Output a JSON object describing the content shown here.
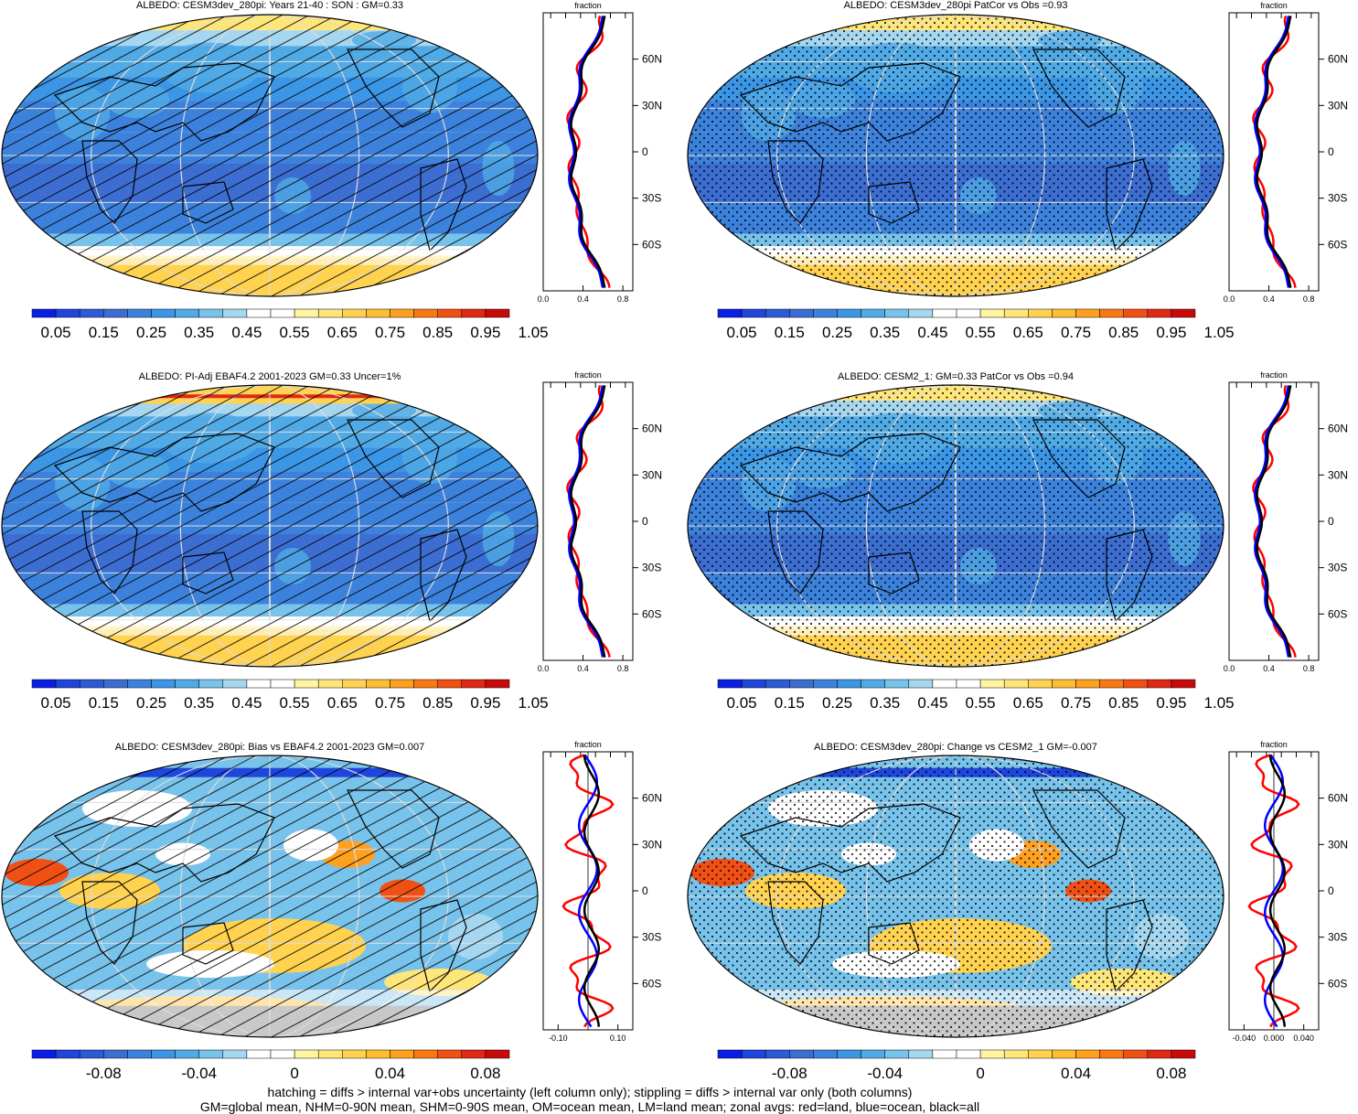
{
  "panels": [
    {
      "title": "ALBEDO: CESM3dev_280pi: Years 21-40 : SON : GM=0.33",
      "overlay": "hatch",
      "field": "abs",
      "zonal_xticks": [
        "0.0",
        "0.4",
        "0.8"
      ],
      "zonal_xlabel": "fraction",
      "zonal_xrange": [
        0,
        0.9
      ],
      "cbar_labels": [
        "0.05",
        "0.15",
        "0.25",
        "0.35",
        "0.45",
        "0.55",
        "0.65",
        "0.75",
        "0.85",
        "0.95",
        "1.05"
      ]
    },
    {
      "title": "ALBEDO: CESM3dev_280pi PatCor vs Obs =0.93",
      "overlay": "stipple",
      "field": "abs",
      "zonal_xticks": [
        "0.0",
        "0.4",
        "0.8"
      ],
      "zonal_xlabel": "fraction",
      "zonal_xrange": [
        0,
        0.9
      ],
      "cbar_labels": [
        "0.05",
        "0.15",
        "0.25",
        "0.35",
        "0.45",
        "0.55",
        "0.65",
        "0.75",
        "0.85",
        "0.95",
        "1.05"
      ]
    },
    {
      "title": "ALBEDO: PI-Adj EBAF4.2 2001-2023 GM=0.33 Uncer=1%",
      "overlay": "hatch",
      "field": "obs",
      "zonal_xticks": [
        "0.0",
        "0.4",
        "0.8"
      ],
      "zonal_xlabel": "fraction",
      "zonal_xrange": [
        0,
        0.9
      ],
      "cbar_labels": [
        "0.05",
        "0.15",
        "0.25",
        "0.35",
        "0.45",
        "0.55",
        "0.65",
        "0.75",
        "0.85",
        "0.95",
        "1.05"
      ]
    },
    {
      "title": "ALBEDO: CESM2_1: GM=0.33 PatCor vs Obs =0.94",
      "overlay": "stipple",
      "field": "abs",
      "zonal_xticks": [
        "0.0",
        "0.4",
        "0.8"
      ],
      "zonal_xlabel": "fraction",
      "zonal_xrange": [
        0,
        0.9
      ],
      "cbar_labels": [
        "0.05",
        "0.15",
        "0.25",
        "0.35",
        "0.45",
        "0.55",
        "0.65",
        "0.75",
        "0.85",
        "0.95",
        "1.05"
      ]
    },
    {
      "title": "ALBEDO: CESM3dev_280pi: Bias vs EBAF4.2 2001-2023  GM=0.007",
      "overlay": "hatch",
      "field": "diff",
      "zonal_xticks": [
        "-0.10",
        "0.10"
      ],
      "zonal_xlabel": "fraction",
      "zonal_xrange": [
        -0.15,
        0.15
      ],
      "cbar_labels": [
        "-0.08",
        "-0.04",
        "0",
        "0.04",
        "0.08"
      ]
    },
    {
      "title": "ALBEDO: CESM3dev_280pi: Change vs CESM2_1 GM=-0.007",
      "overlay": "stipple",
      "field": "diff",
      "zonal_xticks": [
        "-0.040",
        "0.000",
        "0.040"
      ],
      "zonal_xlabel": "fraction",
      "zonal_xrange": [
        -0.06,
        0.06
      ],
      "cbar_labels": [
        "-0.08",
        "-0.04",
        "0",
        "0.04",
        "0.08"
      ]
    }
  ],
  "lat_labels": [
    "60N",
    "30N",
    "0",
    "30S",
    "60S"
  ],
  "colors": {
    "abs_scale": [
      "#0a1ee6",
      "#1e46dc",
      "#2d5ad7",
      "#3c6ed2",
      "#3c82dc",
      "#3c96e6",
      "#50aae6",
      "#78c3eb",
      "#a5d7f0",
      "#ffffff",
      "#ffffff",
      "#fff5a0",
      "#ffe678",
      "#ffd250",
      "#ffbe32",
      "#ffa01e",
      "#fa7814",
      "#f05014",
      "#e12814",
      "#c80a0a"
    ],
    "diff_scale": [
      "#0a1ee6",
      "#1e46dc",
      "#2d5ad7",
      "#3c6ed2",
      "#3c82dc",
      "#3c96e6",
      "#50aae6",
      "#78c3eb",
      "#a5d7f0",
      "#ffffff",
      "#ffffff",
      "#fff5a0",
      "#ffe678",
      "#ffd250",
      "#ffbe32",
      "#ffa01e",
      "#fa7814",
      "#f05014",
      "#e12814",
      "#c80a0a"
    ],
    "land_line": "#000000",
    "zonal_land": "#ff0000",
    "zonal_ocean": "#0000ff",
    "zonal_all": "#000000"
  },
  "footer": {
    "line1": "hatching = diffs > internal var+obs uncertainty (left column only); stippling = diffs > internal var only (both columns)",
    "line2": "GM=global mean, NHM=0-90N mean, SHM=0-90S mean, OM=ocean mean, LM=land mean; zonal avgs: red=land, blue=ocean, black=all"
  }
}
